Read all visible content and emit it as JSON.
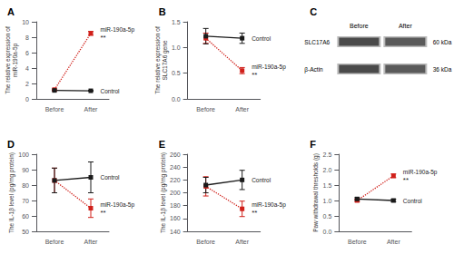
{
  "chart_data": [
    {
      "type": "line",
      "title": "A",
      "ylabel": "The relative expression of\nmiR-190a-5p",
      "categories": [
        "Before",
        "After"
      ],
      "series": [
        {
          "name": "miR-190a-5p",
          "color": "#d0201a",
          "values": [
            1.2,
            8.5
          ],
          "errors": [
            0.08,
            0.25
          ],
          "marker": "square",
          "line_style": "dotted"
        },
        {
          "name": "Control",
          "color": "#1a1a1a",
          "values": [
            1.1,
            1.05
          ],
          "errors": [
            0.05,
            0.05
          ],
          "marker": "square",
          "line_style": "solid"
        }
      ],
      "annotations": [
        {
          "text": "**",
          "series": "miR-190a-5p"
        }
      ],
      "ylim": [
        0,
        10
      ],
      "yticks": [
        0,
        2,
        4,
        6,
        8,
        10
      ],
      "grid": false
    },
    {
      "type": "line",
      "title": "B",
      "ylabel": "The relative expression of\nSLC17A6 gene",
      "categories": [
        "Before",
        "After"
      ],
      "series": [
        {
          "name": "miR-190a-5p",
          "color": "#d0201a",
          "values": [
            1.18,
            0.55
          ],
          "errors": [
            0.1,
            0.06
          ],
          "marker": "square",
          "line_style": "dotted"
        },
        {
          "name": "Control",
          "color": "#1a1a1a",
          "values": [
            1.22,
            1.18
          ],
          "errors": [
            0.15,
            0.1
          ],
          "marker": "square",
          "line_style": "solid"
        }
      ],
      "annotations": [
        {
          "text": "**",
          "series": "miR-190a-5p"
        }
      ],
      "ylim": [
        0.0,
        1.5
      ],
      "yticks": [
        {
          "value": 0,
          "label": "0.0"
        },
        0.5,
        {
          "value": 1,
          "label": "1.0"
        },
        1.5
      ],
      "grid": false
    },
    {
      "type": "blot",
      "title": "C",
      "categories": [
        "Before",
        "After"
      ],
      "row_labels": [
        "SLC17A6",
        "β-Actin"
      ],
      "row_annotations": [
        "60 kDa",
        "36 kDa"
      ]
    },
    {
      "type": "line",
      "title": "D",
      "ylabel": "The IL-1β level (pg/mg protein)",
      "categories": [
        "Before",
        "After"
      ],
      "series": [
        {
          "name": "miR-190a-5p",
          "color": "#d0201a",
          "values": [
            83,
            65
          ],
          "errors": [
            8,
            6
          ],
          "marker": "square",
          "line_style": "dotted"
        },
        {
          "name": "Control",
          "color": "#1a1a1a",
          "values": [
            83,
            85
          ],
          "errors": [
            8,
            10
          ],
          "marker": "square",
          "line_style": "solid"
        }
      ],
      "annotations": [
        {
          "text": "**",
          "series": "miR-190a-5p"
        }
      ],
      "ylim": [
        50,
        100
      ],
      "yticks": [
        50,
        60,
        70,
        80,
        90,
        100
      ],
      "grid": false
    },
    {
      "type": "line",
      "title": "E",
      "ylabel": "The IL-1β level (pg/mg protein)",
      "categories": [
        "Before",
        "After"
      ],
      "series": [
        {
          "name": "miR-190a-5p",
          "color": "#d0201a",
          "values": [
            210,
            175
          ],
          "errors": [
            15,
            12
          ],
          "marker": "square",
          "line_style": "dotted"
        },
        {
          "name": "Control",
          "color": "#1a1a1a",
          "values": [
            212,
            220
          ],
          "errors": [
            12,
            15
          ],
          "marker": "square",
          "line_style": "solid"
        }
      ],
      "annotations": [
        {
          "text": "**",
          "series": "miR-190a-5p"
        }
      ],
      "ylim": [
        140,
        260
      ],
      "yticks": [
        140,
        160,
        180,
        200,
        220,
        240,
        260
      ],
      "grid": false
    },
    {
      "type": "line",
      "title": "F",
      "ylabel": "Paw withdrawal thresholds (g)",
      "categories": [
        "Before",
        "After"
      ],
      "series": [
        {
          "name": "miR-190a-5p",
          "color": "#d0201a",
          "values": [
            1.0,
            1.8
          ],
          "errors": [
            0.04,
            0.06
          ],
          "marker": "square",
          "line_style": "dotted"
        },
        {
          "name": "Control",
          "color": "#1a1a1a",
          "values": [
            1.05,
            1.0
          ],
          "errors": [
            0.04,
            0.04
          ],
          "marker": "square",
          "line_style": "solid"
        }
      ],
      "annotations": [
        {
          "text": "**",
          "series": "miR-190a-5p"
        }
      ],
      "ylim": [
        0.0,
        2.5
      ],
      "yticks": [
        {
          "value": 0,
          "label": "0.0"
        },
        0.5,
        {
          "value": 1,
          "label": "1.0"
        },
        1.5,
        {
          "value": 2,
          "label": "2.0"
        },
        2.5
      ],
      "grid": false
    }
  ]
}
